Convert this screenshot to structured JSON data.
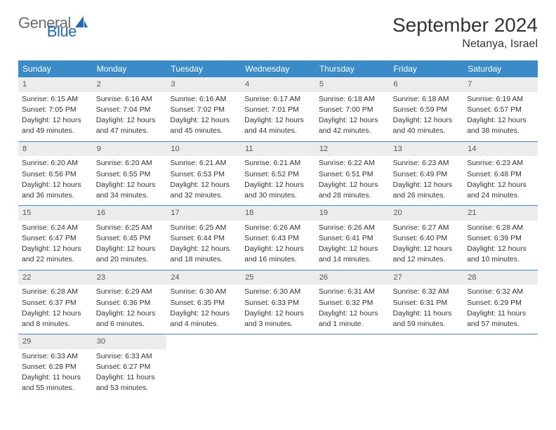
{
  "logo": {
    "text1": "General",
    "text2": "Blue"
  },
  "title": "September 2024",
  "location": "Netanya, Israel",
  "colors": {
    "header_bg": "#3b8bc9",
    "header_text": "#ffffff",
    "daynum_bg": "#ececec",
    "border": "#3b8bc9",
    "logo_gray": "#6b6b6b",
    "logo_blue": "#1e6bb8"
  },
  "weekdays": [
    "Sunday",
    "Monday",
    "Tuesday",
    "Wednesday",
    "Thursday",
    "Friday",
    "Saturday"
  ],
  "weeks": [
    [
      {
        "n": "1",
        "sr": "Sunrise: 6:15 AM",
        "ss": "Sunset: 7:05 PM",
        "d1": "Daylight: 12 hours",
        "d2": "and 49 minutes."
      },
      {
        "n": "2",
        "sr": "Sunrise: 6:16 AM",
        "ss": "Sunset: 7:04 PM",
        "d1": "Daylight: 12 hours",
        "d2": "and 47 minutes."
      },
      {
        "n": "3",
        "sr": "Sunrise: 6:16 AM",
        "ss": "Sunset: 7:02 PM",
        "d1": "Daylight: 12 hours",
        "d2": "and 45 minutes."
      },
      {
        "n": "4",
        "sr": "Sunrise: 6:17 AM",
        "ss": "Sunset: 7:01 PM",
        "d1": "Daylight: 12 hours",
        "d2": "and 44 minutes."
      },
      {
        "n": "5",
        "sr": "Sunrise: 6:18 AM",
        "ss": "Sunset: 7:00 PM",
        "d1": "Daylight: 12 hours",
        "d2": "and 42 minutes."
      },
      {
        "n": "6",
        "sr": "Sunrise: 6:18 AM",
        "ss": "Sunset: 6:59 PM",
        "d1": "Daylight: 12 hours",
        "d2": "and 40 minutes."
      },
      {
        "n": "7",
        "sr": "Sunrise: 6:19 AM",
        "ss": "Sunset: 6:57 PM",
        "d1": "Daylight: 12 hours",
        "d2": "and 38 minutes."
      }
    ],
    [
      {
        "n": "8",
        "sr": "Sunrise: 6:20 AM",
        "ss": "Sunset: 6:56 PM",
        "d1": "Daylight: 12 hours",
        "d2": "and 36 minutes."
      },
      {
        "n": "9",
        "sr": "Sunrise: 6:20 AM",
        "ss": "Sunset: 6:55 PM",
        "d1": "Daylight: 12 hours",
        "d2": "and 34 minutes."
      },
      {
        "n": "10",
        "sr": "Sunrise: 6:21 AM",
        "ss": "Sunset: 6:53 PM",
        "d1": "Daylight: 12 hours",
        "d2": "and 32 minutes."
      },
      {
        "n": "11",
        "sr": "Sunrise: 6:21 AM",
        "ss": "Sunset: 6:52 PM",
        "d1": "Daylight: 12 hours",
        "d2": "and 30 minutes."
      },
      {
        "n": "12",
        "sr": "Sunrise: 6:22 AM",
        "ss": "Sunset: 6:51 PM",
        "d1": "Daylight: 12 hours",
        "d2": "and 28 minutes."
      },
      {
        "n": "13",
        "sr": "Sunrise: 6:23 AM",
        "ss": "Sunset: 6:49 PM",
        "d1": "Daylight: 12 hours",
        "d2": "and 26 minutes."
      },
      {
        "n": "14",
        "sr": "Sunrise: 6:23 AM",
        "ss": "Sunset: 6:48 PM",
        "d1": "Daylight: 12 hours",
        "d2": "and 24 minutes."
      }
    ],
    [
      {
        "n": "15",
        "sr": "Sunrise: 6:24 AM",
        "ss": "Sunset: 6:47 PM",
        "d1": "Daylight: 12 hours",
        "d2": "and 22 minutes."
      },
      {
        "n": "16",
        "sr": "Sunrise: 6:25 AM",
        "ss": "Sunset: 6:45 PM",
        "d1": "Daylight: 12 hours",
        "d2": "and 20 minutes."
      },
      {
        "n": "17",
        "sr": "Sunrise: 6:25 AM",
        "ss": "Sunset: 6:44 PM",
        "d1": "Daylight: 12 hours",
        "d2": "and 18 minutes."
      },
      {
        "n": "18",
        "sr": "Sunrise: 6:26 AM",
        "ss": "Sunset: 6:43 PM",
        "d1": "Daylight: 12 hours",
        "d2": "and 16 minutes."
      },
      {
        "n": "19",
        "sr": "Sunrise: 6:26 AM",
        "ss": "Sunset: 6:41 PM",
        "d1": "Daylight: 12 hours",
        "d2": "and 14 minutes."
      },
      {
        "n": "20",
        "sr": "Sunrise: 6:27 AM",
        "ss": "Sunset: 6:40 PM",
        "d1": "Daylight: 12 hours",
        "d2": "and 12 minutes."
      },
      {
        "n": "21",
        "sr": "Sunrise: 6:28 AM",
        "ss": "Sunset: 6:39 PM",
        "d1": "Daylight: 12 hours",
        "d2": "and 10 minutes."
      }
    ],
    [
      {
        "n": "22",
        "sr": "Sunrise: 6:28 AM",
        "ss": "Sunset: 6:37 PM",
        "d1": "Daylight: 12 hours",
        "d2": "and 8 minutes."
      },
      {
        "n": "23",
        "sr": "Sunrise: 6:29 AM",
        "ss": "Sunset: 6:36 PM",
        "d1": "Daylight: 12 hours",
        "d2": "and 6 minutes."
      },
      {
        "n": "24",
        "sr": "Sunrise: 6:30 AM",
        "ss": "Sunset: 6:35 PM",
        "d1": "Daylight: 12 hours",
        "d2": "and 4 minutes."
      },
      {
        "n": "25",
        "sr": "Sunrise: 6:30 AM",
        "ss": "Sunset: 6:33 PM",
        "d1": "Daylight: 12 hours",
        "d2": "and 3 minutes."
      },
      {
        "n": "26",
        "sr": "Sunrise: 6:31 AM",
        "ss": "Sunset: 6:32 PM",
        "d1": "Daylight: 12 hours",
        "d2": "and 1 minute."
      },
      {
        "n": "27",
        "sr": "Sunrise: 6:32 AM",
        "ss": "Sunset: 6:31 PM",
        "d1": "Daylight: 11 hours",
        "d2": "and 59 minutes."
      },
      {
        "n": "28",
        "sr": "Sunrise: 6:32 AM",
        "ss": "Sunset: 6:29 PM",
        "d1": "Daylight: 11 hours",
        "d2": "and 57 minutes."
      }
    ],
    [
      {
        "n": "29",
        "sr": "Sunrise: 6:33 AM",
        "ss": "Sunset: 6:28 PM",
        "d1": "Daylight: 11 hours",
        "d2": "and 55 minutes."
      },
      {
        "n": "30",
        "sr": "Sunrise: 6:33 AM",
        "ss": "Sunset: 6:27 PM",
        "d1": "Daylight: 11 hours",
        "d2": "and 53 minutes."
      },
      null,
      null,
      null,
      null,
      null
    ]
  ]
}
